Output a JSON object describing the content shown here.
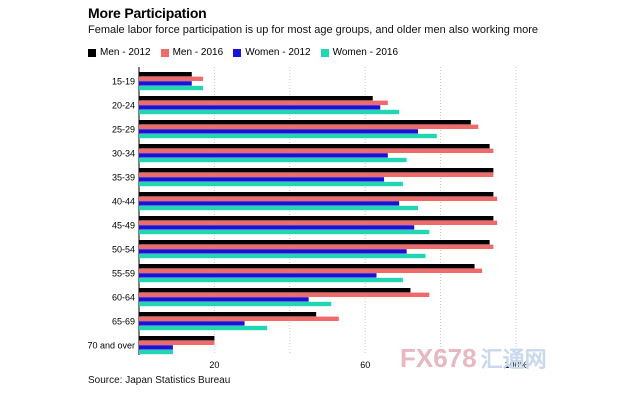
{
  "header": {
    "title": "More Participation",
    "subtitle": "Female labor force participation is up for most age groups, and older men also working more"
  },
  "source": "Source: Japan Statistics Bureau",
  "watermark": {
    "brand": "FX678",
    "cn": "汇通网"
  },
  "chart_data": {
    "type": "bar",
    "orientation": "horizontal",
    "title": "More Participation",
    "subtitle": "Female labor force participation is up for most age groups, and older men also working more",
    "categories": [
      "15-19",
      "20-24",
      "25-29",
      "30-34",
      "35-39",
      "40-44",
      "45-49",
      "50-54",
      "55-59",
      "60-64",
      "65-69",
      "70 and over"
    ],
    "series": [
      {
        "name": "Men - 2012",
        "color": "#000000",
        "values": [
          14,
          62,
          88,
          93,
          94,
          94,
          94,
          93,
          89,
          72,
          47,
          20
        ]
      },
      {
        "name": "Men - 2016",
        "color": "#f06a6a",
        "values": [
          17,
          66,
          90,
          94,
          94,
          95,
          95,
          94,
          91,
          77,
          53,
          20
        ]
      },
      {
        "name": "Women - 2012",
        "color": "#1a12d6",
        "values": [
          14,
          64,
          74,
          66,
          65,
          69,
          73,
          71,
          63,
          45,
          28,
          9
        ]
      },
      {
        "name": "Women - 2016",
        "color": "#22d6b4",
        "values": [
          17,
          69,
          79,
          71,
          70,
          74,
          77,
          76,
          70,
          51,
          34,
          9
        ]
      }
    ],
    "xaxis": {
      "ticks": [
        "20",
        "60",
        "100%"
      ],
      "tick_values": [
        20,
        60,
        100
      ],
      "range": [
        0,
        100
      ]
    },
    "xlim": [
      0,
      100
    ],
    "grid": "vertical dotted",
    "legend": "top-left"
  }
}
